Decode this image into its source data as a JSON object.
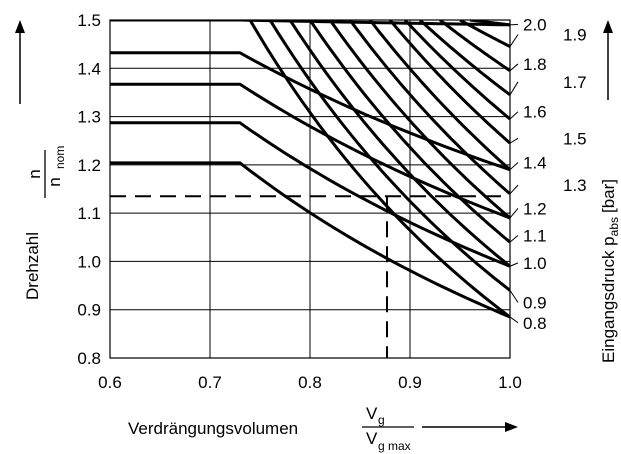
{
  "chart_data": {
    "type": "line",
    "x_axis": {
      "label": "Verdrängungsvolumen",
      "fraction_numerator": "V",
      "fraction_numerator_sub": "g",
      "fraction_denominator": "V",
      "fraction_denominator_sub": "g max",
      "range": [
        0.6,
        1.0
      ],
      "ticks": [
        "0.6",
        "0.7",
        "0.8",
        "0.9",
        "1.0"
      ]
    },
    "y_axis": {
      "label": "Drehzahl",
      "fraction_numerator": "n",
      "fraction_denominator": "n",
      "fraction_denominator_sub": "nom",
      "range": [
        0.8,
        1.5
      ],
      "ticks": [
        "0.8",
        "0.9",
        "1.0",
        "1.1",
        "1.2",
        "1.3",
        "1.4",
        "1.5"
      ]
    },
    "y2_axis": {
      "label": "Eingangsdruck p",
      "label_sub": "abs",
      "label_unit": "[bar]"
    },
    "grid": true,
    "series": [
      {
        "name": "0.8",
        "label_y": 0.873,
        "plateau": 1.5,
        "x_start": 0.74,
        "y_at_x1": 0.885
      },
      {
        "name": "0.9",
        "label_y": 0.915,
        "plateau": 1.5,
        "x_start": 0.76,
        "y_at_x1": 0.94
      },
      {
        "name": "1.0",
        "label_y": 0.997,
        "plateau": 1.5,
        "x_start": 0.78,
        "y_at_x1": 0.99
      },
      {
        "name": "1.1",
        "label_y": 1.054,
        "plateau": 1.5,
        "x_start": 0.8,
        "y_at_x1": 1.04
      },
      {
        "name": "1.2",
        "label_y": 1.11,
        "plateau": 1.5,
        "x_start": 0.82,
        "y_at_x1": 1.09
      },
      {
        "name": "1.3",
        "label_y": 1.158,
        "plateau": 1.5,
        "x_start": 0.84,
        "y_at_x1": 1.14
      },
      {
        "name": "1.4",
        "label_y": 1.205,
        "plateau": 1.5,
        "x_start": 0.86,
        "y_at_x1": 1.19
      },
      {
        "name": "1.5",
        "label_y": 1.255,
        "plateau": 1.5,
        "x_start": 0.88,
        "y_at_x1": 1.245
      },
      {
        "name": "1.6",
        "label_y": 1.31,
        "plateau": 1.5,
        "x_start": 0.895,
        "y_at_x1": 1.295
      },
      {
        "name": "1.7",
        "label_y": 1.372,
        "plateau": 1.5,
        "x_start": 0.91,
        "y_at_x1": 1.345
      },
      {
        "name": "1.8",
        "label_y": 1.409,
        "plateau": 1.5,
        "x_start": 0.93,
        "y_at_x1": 1.395
      },
      {
        "name": "1.9",
        "label_y": 1.47,
        "plateau": 1.5,
        "x_start": 0.95,
        "y_at_x1": 1.445
      },
      {
        "name": "2.0",
        "label_y": 1.491,
        "plateau": 1.5,
        "x_start": 0.96,
        "y_at_x1": 1.49
      }
    ],
    "envelope": {
      "x_knee": 0.73,
      "plateaus": [
        1.204,
        1.287,
        1.367,
        1.432,
        1.5
      ]
    },
    "reference_lines": {
      "y": 1.135,
      "x": 0.877
    }
  }
}
